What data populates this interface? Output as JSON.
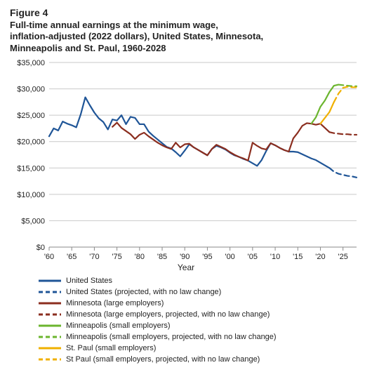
{
  "figure_number": "Figure 4",
  "title": "Full-time annual earnings at the minimum wage,\ninflation-adjusted (2022 dollars), United States, Minnesota,\nMinneapolis and St. Paul, 1960-2028",
  "xlabel": "Year",
  "chart": {
    "type": "line",
    "background_color": "#ffffff",
    "gridline_color": "#c9c9c9",
    "axis_color": "#8a8a8a",
    "tick_font_size": 11,
    "label_font_size": 12,
    "title_font_size": 13,
    "xlim": [
      1960,
      2028
    ],
    "ylim": [
      0,
      35000
    ],
    "ytick_step": 5000,
    "yticks": [
      0,
      5000,
      10000,
      15000,
      20000,
      25000,
      30000,
      35000
    ],
    "ytick_labels": [
      "$0",
      "$5,000",
      "$10,000",
      "$15,000",
      "$20,000",
      "$25,000",
      "$30,000",
      "$35,000"
    ],
    "xticks": [
      1960,
      1965,
      1970,
      1975,
      1980,
      1985,
      1990,
      1995,
      2000,
      2005,
      2010,
      2015,
      2020,
      2025
    ],
    "xtick_labels": [
      "'60",
      "'65",
      "'70",
      "'75",
      "'80",
      "'85",
      "'90",
      "'95",
      "'00",
      "'05",
      "'10",
      "'15",
      "'20",
      "'25"
    ],
    "line_width": 2.2,
    "series": [
      {
        "id": "us",
        "label": "United States",
        "color": "#1f5597",
        "dash": "solid",
        "points": [
          [
            1960,
            21000
          ],
          [
            1961,
            22500
          ],
          [
            1962,
            22100
          ],
          [
            1963,
            23800
          ],
          [
            1964,
            23400
          ],
          [
            1965,
            23100
          ],
          [
            1966,
            22700
          ],
          [
            1967,
            25200
          ],
          [
            1968,
            28400
          ],
          [
            1969,
            26900
          ],
          [
            1970,
            25500
          ],
          [
            1971,
            24400
          ],
          [
            1972,
            23700
          ],
          [
            1973,
            22300
          ],
          [
            1974,
            24200
          ],
          [
            1975,
            24000
          ],
          [
            1976,
            25000
          ],
          [
            1977,
            23300
          ],
          [
            1978,
            24700
          ],
          [
            1979,
            24500
          ],
          [
            1980,
            23300
          ],
          [
            1981,
            23300
          ],
          [
            1982,
            21900
          ],
          [
            1983,
            21100
          ],
          [
            1984,
            20400
          ],
          [
            1985,
            19700
          ],
          [
            1986,
            19000
          ],
          [
            1987,
            18700
          ],
          [
            1988,
            18000
          ],
          [
            1989,
            17200
          ],
          [
            1990,
            18300
          ],
          [
            1991,
            19500
          ],
          [
            1992,
            18900
          ],
          [
            1993,
            18400
          ],
          [
            1994,
            17900
          ],
          [
            1995,
            17400
          ],
          [
            1996,
            18600
          ],
          [
            1997,
            19200
          ],
          [
            1998,
            18900
          ],
          [
            1999,
            18500
          ],
          [
            2000,
            17900
          ],
          [
            2001,
            17400
          ],
          [
            2002,
            17100
          ],
          [
            2003,
            16700
          ],
          [
            2004,
            16400
          ],
          [
            2005,
            15900
          ],
          [
            2006,
            15400
          ],
          [
            2007,
            16500
          ],
          [
            2008,
            18200
          ],
          [
            2009,
            19700
          ],
          [
            2010,
            19300
          ],
          [
            2011,
            18800
          ],
          [
            2012,
            18400
          ],
          [
            2013,
            18100
          ],
          [
            2014,
            18100
          ],
          [
            2015,
            18000
          ],
          [
            2016,
            17600
          ],
          [
            2017,
            17200
          ],
          [
            2018,
            16800
          ],
          [
            2019,
            16500
          ],
          [
            2020,
            16000
          ],
          [
            2021,
            15500
          ],
          [
            2022,
            15000
          ]
        ]
      },
      {
        "id": "us-proj",
        "label": "United States (projected, with no law change)",
        "color": "#1f5597",
        "dash": "dash",
        "points": [
          [
            2022,
            15000
          ],
          [
            2023,
            14300
          ],
          [
            2024,
            13900
          ],
          [
            2025,
            13700
          ],
          [
            2026,
            13500
          ],
          [
            2027,
            13400
          ],
          [
            2028,
            13200
          ]
        ]
      },
      {
        "id": "mn",
        "label": "Minnesota (large employers)",
        "color": "#8b2e1f",
        "dash": "solid",
        "points": [
          [
            1974,
            22800
          ],
          [
            1975,
            23600
          ],
          [
            1976,
            22600
          ],
          [
            1977,
            22000
          ],
          [
            1978,
            21400
          ],
          [
            1979,
            20500
          ],
          [
            1980,
            21300
          ],
          [
            1981,
            21700
          ],
          [
            1982,
            21000
          ],
          [
            1983,
            20400
          ],
          [
            1984,
            19800
          ],
          [
            1985,
            19300
          ],
          [
            1986,
            18900
          ],
          [
            1987,
            18600
          ],
          [
            1988,
            19800
          ],
          [
            1989,
            18900
          ],
          [
            1990,
            19500
          ],
          [
            1991,
            19600
          ],
          [
            1992,
            18900
          ],
          [
            1993,
            18400
          ],
          [
            1994,
            17900
          ],
          [
            1995,
            17400
          ],
          [
            1996,
            18600
          ],
          [
            1997,
            19400
          ],
          [
            1998,
            19000
          ],
          [
            1999,
            18600
          ],
          [
            2000,
            18000
          ],
          [
            2001,
            17500
          ],
          [
            2002,
            17100
          ],
          [
            2003,
            16800
          ],
          [
            2004,
            16400
          ],
          [
            2005,
            19800
          ],
          [
            2006,
            19200
          ],
          [
            2007,
            18700
          ],
          [
            2008,
            18500
          ],
          [
            2009,
            19700
          ],
          [
            2010,
            19300
          ],
          [
            2011,
            18800
          ],
          [
            2012,
            18400
          ],
          [
            2013,
            18100
          ],
          [
            2014,
            20600
          ],
          [
            2015,
            21700
          ],
          [
            2016,
            23000
          ],
          [
            2017,
            23500
          ],
          [
            2018,
            23400
          ],
          [
            2019,
            23200
          ],
          [
            2020,
            23400
          ],
          [
            2021,
            22600
          ],
          [
            2022,
            21800
          ]
        ]
      },
      {
        "id": "mn-proj",
        "label": "Minnesota (large employers, projected, with no law change)",
        "color": "#8b2e1f",
        "dash": "dash",
        "points": [
          [
            2022,
            21800
          ],
          [
            2023,
            21600
          ],
          [
            2024,
            21500
          ],
          [
            2025,
            21400
          ],
          [
            2026,
            21400
          ],
          [
            2027,
            21300
          ],
          [
            2028,
            21300
          ]
        ]
      },
      {
        "id": "mpls",
        "label": "Minneapolis (small employers)",
        "color": "#6bb52e",
        "dash": "solid",
        "points": [
          [
            2018,
            23400
          ],
          [
            2019,
            24600
          ],
          [
            2020,
            26600
          ],
          [
            2021,
            27800
          ],
          [
            2022,
            29400
          ],
          [
            2023,
            30600
          ],
          [
            2024,
            30800
          ]
        ]
      },
      {
        "id": "mpls-proj",
        "label": "Minneapolis (small  employers, projected, with no law change)",
        "color": "#6bb52e",
        "dash": "dash",
        "points": [
          [
            2024,
            30800
          ],
          [
            2025,
            30700
          ],
          [
            2026,
            30600
          ],
          [
            2027,
            30500
          ],
          [
            2028,
            30500
          ]
        ]
      },
      {
        "id": "stp",
        "label": "St. Paul (small employers)",
        "color": "#f0b000",
        "dash": "solid",
        "points": [
          [
            2020,
            23400
          ],
          [
            2021,
            24500
          ],
          [
            2022,
            25600
          ],
          [
            2023,
            27500
          ]
        ]
      },
      {
        "id": "stp-proj",
        "label": "St Paul (small employers, projected, with no law change)",
        "color": "#f0b000",
        "dash": "dash",
        "points": [
          [
            2023,
            27500
          ],
          [
            2024,
            29100
          ],
          [
            2025,
            30200
          ],
          [
            2026,
            30400
          ],
          [
            2027,
            30300
          ],
          [
            2028,
            30300
          ]
        ]
      }
    ]
  }
}
